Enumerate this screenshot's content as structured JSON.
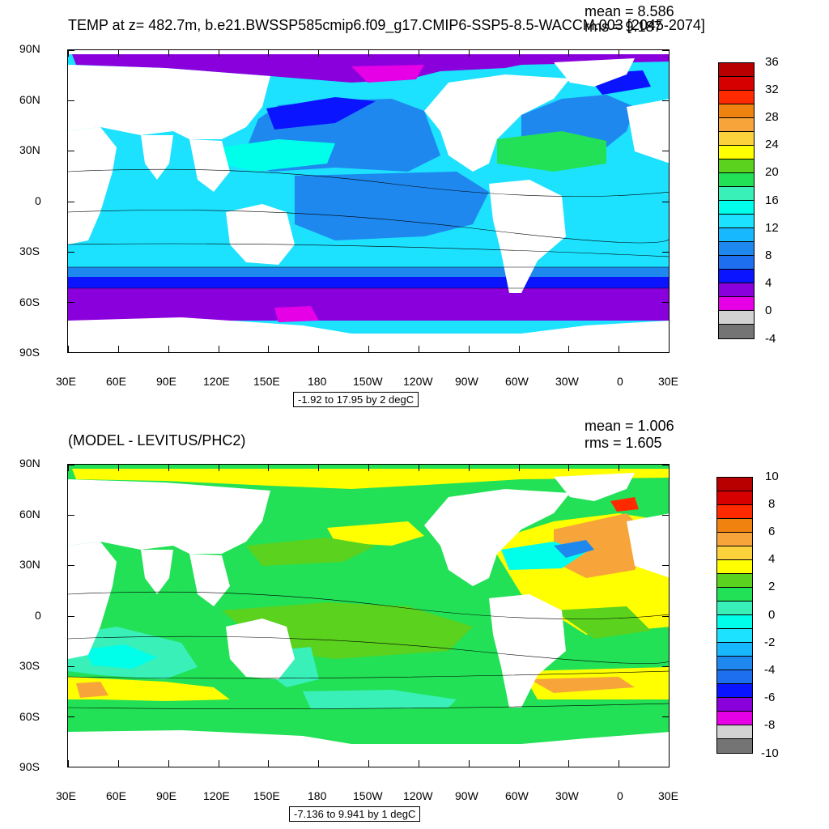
{
  "panels": [
    {
      "title": "TEMP at z= 482.7m, b.e21.BWSSP585cmip6.f09_g17.CMIP6-SSP5-8.5-WACCM.003 [2045-2074]",
      "mean": "mean = 8.586",
      "rms": "rms = 9.187",
      "range": "-1.92 to 17.95 by 2 degC",
      "lat_labels": [
        "90N",
        "60N",
        "30N",
        "0",
        "30S",
        "60S",
        "90S"
      ],
      "lon_labels": [
        "30E",
        "60E",
        "90E",
        "120E",
        "150E",
        "180",
        "150W",
        "120W",
        "90W",
        "60W",
        "30W",
        "0",
        "30E"
      ],
      "colorbar": {
        "labels": [
          "36",
          "32",
          "28",
          "24",
          "20",
          "16",
          "12",
          "8",
          "4",
          "0",
          "-4"
        ],
        "colors": [
          "#b80000",
          "#d70000",
          "#ff2a00",
          "#f08210",
          "#f7a53a",
          "#fbd13c",
          "#ffff00",
          "#5ad21e",
          "#22e156",
          "#38f0b8",
          "#00ffea",
          "#1ce1ff",
          "#18b8ff",
          "#1e88ef",
          "#1e6ef0",
          "#0a14ff",
          "#8a00dc",
          "#e600e6",
          "#d2d2d2",
          "#747474"
        ]
      }
    },
    {
      "title": "(MODEL - LEVITUS/PHC2)",
      "mean": "mean = 1.006",
      "rms": "rms = 1.605",
      "range": "-7.136 to 9.941 by 1 degC",
      "lat_labels": [
        "90N",
        "60N",
        "30N",
        "0",
        "30S",
        "60S",
        "90S"
      ],
      "lon_labels": [
        "30E",
        "60E",
        "90E",
        "120E",
        "150E",
        "180",
        "150W",
        "120W",
        "90W",
        "60W",
        "30W",
        "0",
        "30E"
      ],
      "colorbar": {
        "labels": [
          "10",
          "8",
          "6",
          "4",
          "2",
          "0",
          "-2",
          "-4",
          "-6",
          "-8",
          "-10"
        ],
        "colors": [
          "#b80000",
          "#d70000",
          "#ff2a00",
          "#f08210",
          "#f7a53a",
          "#fbd13c",
          "#ffff00",
          "#5ad21e",
          "#22e156",
          "#38f0b8",
          "#00ffea",
          "#1ce1ff",
          "#18b8ff",
          "#1e88ef",
          "#1e6ef0",
          "#0a14ff",
          "#8a00dc",
          "#e600e6",
          "#d2d2d2",
          "#747474"
        ]
      }
    }
  ],
  "map_colors": {
    "land": "#ffffff",
    "top_deep_purple": "#8a00dc",
    "top_magenta": "#e600e6",
    "top_blue": "#0a14ff",
    "top_mid_blue": "#1e88ef",
    "top_light_blue": "#1ce1ff",
    "top_cyan": "#00ffea",
    "top_green": "#22e156",
    "diff_yellow": "#ffff00",
    "diff_green": "#5ad21e",
    "diff_lgreen": "#22e156",
    "diff_cyan": "#38f0b8",
    "diff_orange": "#f7a53a",
    "diff_red": "#ff2a00"
  }
}
